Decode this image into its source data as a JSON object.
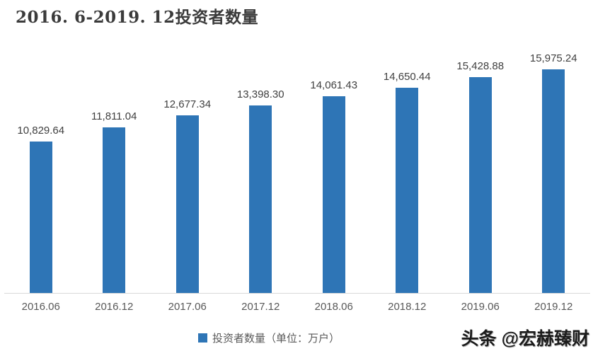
{
  "title": "2016. 6-2019. 12投资者数量",
  "watermark": "头条 @宏赫臻财",
  "legend": {
    "label": "投资者数量（单位：万户）"
  },
  "colors": {
    "bar": "#2E75B6",
    "axis_line": "#D9D9D9",
    "value_label_text": "#404040",
    "axis_text": "#595959",
    "title_text": "#3B3B3B"
  },
  "chart_data": {
    "type": "bar",
    "title": "2016.6-2019.12投资者数量",
    "categories": [
      "2016.06",
      "2016.12",
      "2017.06",
      "2017.12",
      "2018.06",
      "2018.12",
      "2019.06",
      "2019.12"
    ],
    "values": [
      10829.64,
      11811.04,
      12677.34,
      13398.3,
      14061.43,
      14650.44,
      15428.88,
      15975.24
    ],
    "value_labels": [
      "10,829.64",
      "11,811.04",
      "12,677.34",
      "13,398.30",
      "14,061.43",
      "14,650.44",
      "15,428.88",
      "15,975.24"
    ],
    "series_name": "投资者数量（单位：万户）",
    "legend": [
      "投资者数量（单位：万户）"
    ],
    "xlabel": "",
    "ylabel": "",
    "ylim": [
      0,
      16000
    ],
    "grid": false,
    "data_labels": true,
    "legend_position": "bottom-center",
    "baseline_axis": "x"
  }
}
